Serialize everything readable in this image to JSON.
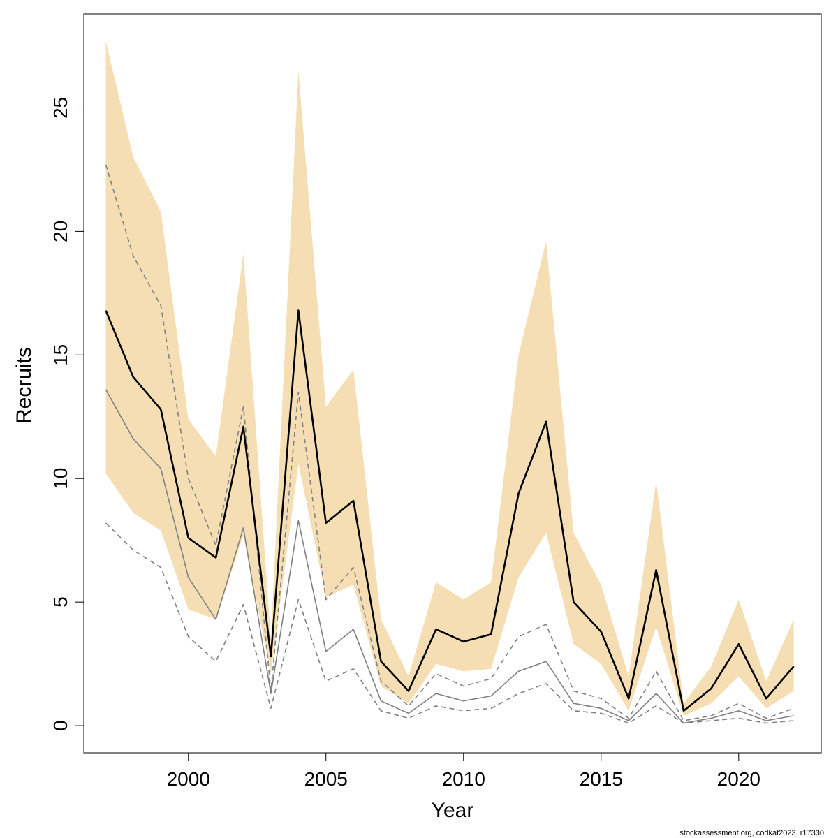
{
  "chart_data": {
    "type": "line",
    "xlabel": "Year",
    "ylabel": "Recruits",
    "xlim": [
      1996.2,
      2023
    ],
    "ylim": [
      -1.1,
      28.8
    ],
    "x_ticks": [
      2000,
      2005,
      2010,
      2015,
      2020
    ],
    "y_ticks": [
      0,
      5,
      10,
      15,
      20,
      25
    ],
    "grid": false,
    "x": [
      1997,
      1998,
      1999,
      2000,
      2001,
      2002,
      2003,
      2004,
      2005,
      2006,
      2007,
      2008,
      2009,
      2010,
      2011,
      2012,
      2013,
      2014,
      2015,
      2016,
      2017,
      2018,
      2019,
      2020,
      2021,
      2022
    ],
    "band": {
      "color": "#f5deb3",
      "upper": [
        27.7,
        23.0,
        20.8,
        12.4,
        10.9,
        19.1,
        3.5,
        26.5,
        12.9,
        14.4,
        4.3,
        2.0,
        5.8,
        5.1,
        5.8,
        15.0,
        19.6,
        7.8,
        5.7,
        2.0,
        9.9,
        0.9,
        2.4,
        5.1,
        1.8,
        4.3
      ],
      "lower": [
        10.2,
        8.6,
        7.9,
        4.7,
        4.3,
        7.7,
        2.1,
        10.6,
        5.2,
        5.7,
        1.6,
        0.9,
        2.5,
        2.2,
        2.3,
        6.0,
        7.8,
        3.3,
        2.5,
        0.6,
        4.0,
        0.4,
        0.9,
        2.0,
        0.7,
        1.4
      ]
    },
    "series": [
      {
        "color": "#000000",
        "style": "solid",
        "width": 2.6,
        "values": [
          16.8,
          14.1,
          12.8,
          7.6,
          6.8,
          12.1,
          2.8,
          16.8,
          8.2,
          9.1,
          2.6,
          1.4,
          3.9,
          3.4,
          3.7,
          9.4,
          12.3,
          5.0,
          3.8,
          1.1,
          6.3,
          0.6,
          1.5,
          3.3,
          1.1,
          2.4
        ]
      },
      {
        "color": "#808080",
        "style": "solid",
        "width": 1.6,
        "values": [
          13.6,
          11.6,
          10.4,
          6.0,
          4.3,
          8.0,
          1.3,
          8.3,
          3.0,
          3.9,
          1.0,
          0.5,
          1.3,
          1.0,
          1.2,
          2.2,
          2.6,
          0.9,
          0.7,
          0.2,
          1.3,
          0.1,
          0.3,
          0.6,
          0.2,
          0.4
        ]
      },
      {
        "color": "#808080",
        "style": "dashed",
        "width": 1.6,
        "values": [
          22.7,
          19.0,
          17.0,
          10.0,
          7.3,
          12.9,
          1.4,
          13.5,
          5.1,
          6.4,
          1.8,
          0.8,
          2.1,
          1.6,
          1.9,
          3.6,
          4.1,
          1.4,
          1.1,
          0.3,
          2.2,
          0.2,
          0.4,
          0.9,
          0.3,
          0.7
        ]
      },
      {
        "color": "#808080",
        "style": "dashed",
        "width": 1.6,
        "values": [
          8.2,
          7.1,
          6.4,
          3.6,
          2.6,
          4.9,
          0.7,
          5.1,
          1.8,
          2.3,
          0.6,
          0.3,
          0.8,
          0.6,
          0.7,
          1.3,
          1.7,
          0.6,
          0.5,
          0.1,
          0.8,
          0.1,
          0.2,
          0.3,
          0.1,
          0.2
        ]
      }
    ]
  },
  "footer": {
    "credit": "stockassessment.org, codkat2023, r17330"
  }
}
